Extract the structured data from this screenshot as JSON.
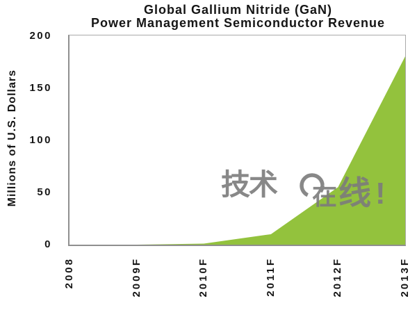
{
  "title": {
    "line1": "Global Gallium Nitride (GaN)",
    "line2": "Power Management Semiconductor Revenue"
  },
  "chart_data": {
    "type": "area",
    "title": "Global Gallium Nitride (GaN) Power Management Semiconductor Revenue",
    "categories": [
      "2008",
      "2009F",
      "2010F",
      "2011F",
      "2012F",
      "2013F"
    ],
    "values": [
      0,
      0,
      1,
      10,
      55,
      180
    ],
    "xlabel": "",
    "ylabel": "Millions of U.S. Dollars",
    "ylim": [
      0,
      200
    ],
    "yticks": [
      0,
      50,
      100,
      150,
      200
    ],
    "grid": false,
    "legend": "none",
    "area_color": "#93c23d"
  },
  "watermark": {
    "part1": "技术",
    "part2": "在",
    "part3": "线",
    "part4": "!",
    "color": "#7c7c7c"
  },
  "colors": {
    "area_green": "#93c23d",
    "plot_border": "#8f8f8f",
    "text": "#151515",
    "watermark_gray": "#7c7c7c",
    "background": "#ffffff"
  }
}
